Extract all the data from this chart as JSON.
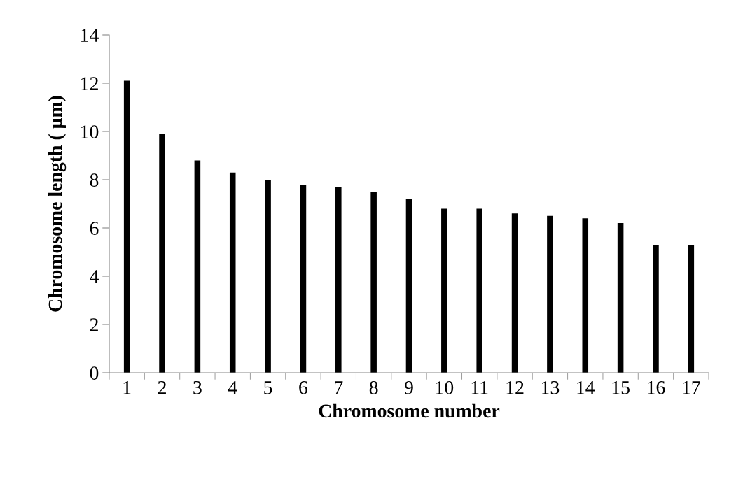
{
  "chart_data": {
    "type": "bar",
    "xlabel": "Chromosome number",
    "ylabel": "Chromosome length ( µm)",
    "categories": [
      "1",
      "2",
      "3",
      "4",
      "5",
      "6",
      "7",
      "8",
      "9",
      "10",
      "11",
      "12",
      "13",
      "14",
      "15",
      "16",
      "17"
    ],
    "values": [
      12.1,
      9.9,
      8.8,
      8.3,
      8.0,
      7.8,
      7.7,
      7.5,
      7.2,
      6.8,
      6.8,
      6.6,
      6.5,
      6.4,
      6.2,
      5.3,
      5.3
    ],
    "color": "#000000",
    "ylim": [
      0,
      14
    ],
    "yticks": [
      0,
      2,
      4,
      6,
      8,
      10,
      12,
      14
    ],
    "grid": false,
    "legend": false
  }
}
